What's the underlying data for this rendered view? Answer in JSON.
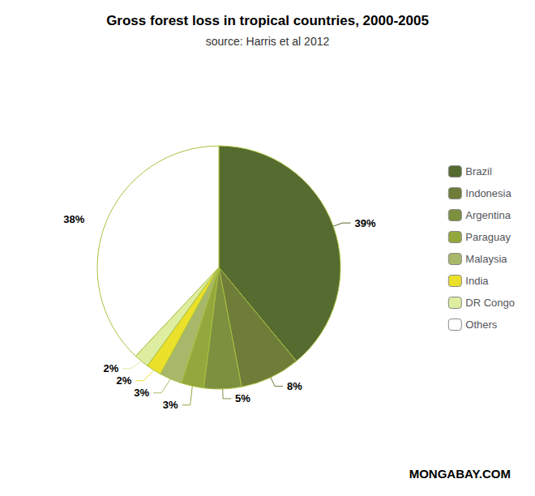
{
  "chart_data": {
    "type": "pie",
    "title": "Gross forest loss in tropical countries, 2000-2005",
    "subtitle": "source: Harris et al 2012",
    "categories": [
      "Brazil",
      "Indonesia",
      "Argentina",
      "Paraguay",
      "Malaysia",
      "India",
      "DR Congo",
      "Others"
    ],
    "values": [
      39,
      8,
      5,
      3,
      3,
      2,
      2,
      38
    ],
    "value_labels": [
      "39%",
      "8%",
      "5%",
      "3%",
      "3%",
      "2%",
      "2%",
      "38%"
    ],
    "colors": [
      "#556b2f",
      "#6e7d38",
      "#7d9040",
      "#92a83c",
      "#a8b86a",
      "#ebe02a",
      "#ddeea0",
      "#ffffff"
    ],
    "data_labels": true,
    "legend": "right",
    "annotations": [
      "MONGABAY.COM"
    ]
  }
}
